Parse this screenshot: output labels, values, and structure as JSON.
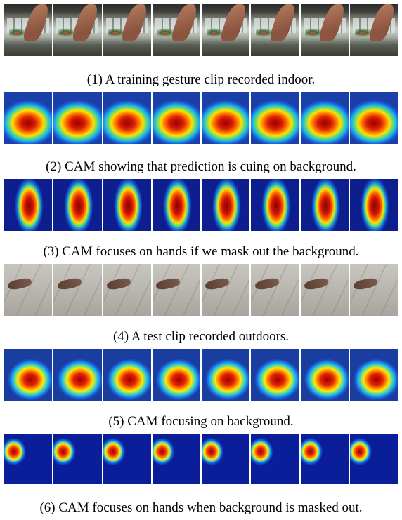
{
  "figure": {
    "rows": [
      {
        "caption": "(1) A training gesture clip recorded indoor.",
        "frame_count": 8,
        "kind": "video-frames-indoor"
      },
      {
        "caption": "(2) CAM showing that prediction is cuing on background.",
        "frame_count": 8,
        "kind": "cam-heatmap-background"
      },
      {
        "caption": "(3) CAM focuses on hands if we mask out the background.",
        "frame_count": 8,
        "kind": "cam-heatmap-hand"
      },
      {
        "caption": "(4) A test clip recorded outdoors.",
        "frame_count": 8,
        "kind": "video-frames-outdoor"
      },
      {
        "caption": "(5) CAM focusing on background.",
        "frame_count": 8,
        "kind": "cam-heatmap-background-outdoor"
      },
      {
        "caption": "(6) CAM focuses on hands when background is masked out.",
        "frame_count": 8,
        "kind": "cam-heatmap-hand-masked"
      }
    ]
  }
}
